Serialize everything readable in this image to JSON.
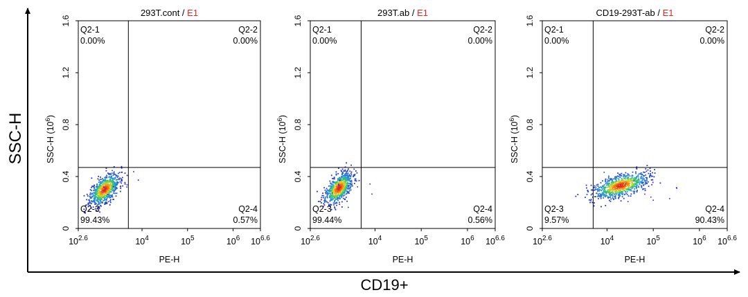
{
  "figure": {
    "outer_y_label": "SSC-H",
    "outer_x_label": "CD19+",
    "axis_color": "#000000",
    "gate_label_color": "#e8211c"
  },
  "chart_data": [
    {
      "type": "scatter",
      "title_prefix": "293T.cont / ",
      "title_gate": "E1",
      "xlabel": "PE-H",
      "ylabel": "SSC-H (10",
      "ylabel_exp": "6",
      "ylabel_close": ")",
      "x_scale": "log",
      "xlim": [
        2.6,
        6.6
      ],
      "ylim": [
        0,
        1.6
      ],
      "x_ticks": [
        {
          "value": 2.6,
          "base": "10",
          "exp": "2.6"
        },
        {
          "value": 4,
          "base": "10",
          "exp": "4"
        },
        {
          "value": 5,
          "base": "10",
          "exp": "5"
        },
        {
          "value": 6,
          "base": "10",
          "exp": "6"
        },
        {
          "value": 6.6,
          "base": "10",
          "exp": "6.6"
        }
      ],
      "y_ticks": [
        {
          "value": 0,
          "label": "0"
        },
        {
          "value": 0.4,
          "label": "0.4"
        },
        {
          "value": 0.8,
          "label": "0.8"
        },
        {
          "value": 1.2,
          "label": "1.2"
        },
        {
          "value": 1.6,
          "label": "1.6"
        }
      ],
      "gate": {
        "x": 3.7,
        "y": 0.47
      },
      "quadrants": [
        {
          "name": "Q2-1",
          "value": "0.00%",
          "pos": "top-left"
        },
        {
          "name": "Q2-2",
          "value": "0.00%",
          "pos": "top-right"
        },
        {
          "name": "Q2-3",
          "value": "99.43%",
          "pos": "bottom-left"
        },
        {
          "name": "Q2-4",
          "value": "0.57%",
          "pos": "bottom-right"
        }
      ],
      "population": {
        "cx": 3.18,
        "cy": 0.3,
        "sx": 0.16,
        "sy": 0.06,
        "count": 700,
        "seed": 11
      }
    },
    {
      "type": "scatter",
      "title_prefix": "293T.ab / ",
      "title_gate": "E1",
      "xlabel": "PE-H",
      "ylabel": "SSC-H (10",
      "ylabel_exp": "6",
      "ylabel_close": ")",
      "x_scale": "log",
      "xlim": [
        2.6,
        6.6
      ],
      "ylim": [
        0,
        1.6
      ],
      "x_ticks": [
        {
          "value": 2.6,
          "base": "10",
          "exp": "2.6"
        },
        {
          "value": 4,
          "base": "10",
          "exp": "4"
        },
        {
          "value": 5,
          "base": "10",
          "exp": "5"
        },
        {
          "value": 6,
          "base": "10",
          "exp": "6"
        },
        {
          "value": 6.6,
          "base": "10",
          "exp": "6.6"
        }
      ],
      "y_ticks": [
        {
          "value": 0,
          "label": "0"
        },
        {
          "value": 0.4,
          "label": "0.4"
        },
        {
          "value": 0.8,
          "label": "0.8"
        },
        {
          "value": 1.2,
          "label": "1.2"
        },
        {
          "value": 1.6,
          "label": "1.6"
        }
      ],
      "gate": {
        "x": 3.7,
        "y": 0.47
      },
      "quadrants": [
        {
          "name": "Q2-1",
          "value": "0.00%",
          "pos": "top-left"
        },
        {
          "name": "Q2-2",
          "value": "0.00%",
          "pos": "top-right"
        },
        {
          "name": "Q2-3",
          "value": "99.44%",
          "pos": "bottom-left"
        },
        {
          "name": "Q2-4",
          "value": "0.56%",
          "pos": "bottom-right"
        }
      ],
      "population": {
        "cx": 3.22,
        "cy": 0.31,
        "sx": 0.15,
        "sy": 0.06,
        "count": 700,
        "seed": 23
      }
    },
    {
      "type": "scatter",
      "title_prefix": "CD19-293T-ab / ",
      "title_gate": "E1",
      "xlabel": "PE-H",
      "ylabel": "SSC-H (10",
      "ylabel_exp": "6",
      "ylabel_close": ")",
      "x_scale": "log",
      "xlim": [
        2.6,
        6.6
      ],
      "ylim": [
        0,
        1.6
      ],
      "x_ticks": [
        {
          "value": 2.6,
          "base": "10",
          "exp": "2.6"
        },
        {
          "value": 4,
          "base": "10",
          "exp": "4"
        },
        {
          "value": 5,
          "base": "10",
          "exp": "5"
        },
        {
          "value": 6,
          "base": "10",
          "exp": "6"
        },
        {
          "value": 6.6,
          "base": "10",
          "exp": "6.6"
        }
      ],
      "y_ticks": [
        {
          "value": 0,
          "label": "0"
        },
        {
          "value": 0.4,
          "label": "0.4"
        },
        {
          "value": 0.8,
          "label": "0.8"
        },
        {
          "value": 1.2,
          "label": "1.2"
        },
        {
          "value": 1.6,
          "label": "1.6"
        }
      ],
      "gate": {
        "x": 3.7,
        "y": 0.47
      },
      "quadrants": [
        {
          "name": "Q2-1",
          "value": "0.00%",
          "pos": "top-left"
        },
        {
          "name": "Q2-2",
          "value": "0.00%",
          "pos": "top-right"
        },
        {
          "name": "Q2-3",
          "value": "9.57%",
          "pos": "bottom-left"
        },
        {
          "name": "Q2-4",
          "value": "90.43%",
          "pos": "bottom-right"
        }
      ],
      "population": {
        "cx": 4.3,
        "cy": 0.33,
        "sx": 0.3,
        "sy": 0.05,
        "count": 750,
        "seed": 37
      }
    }
  ]
}
